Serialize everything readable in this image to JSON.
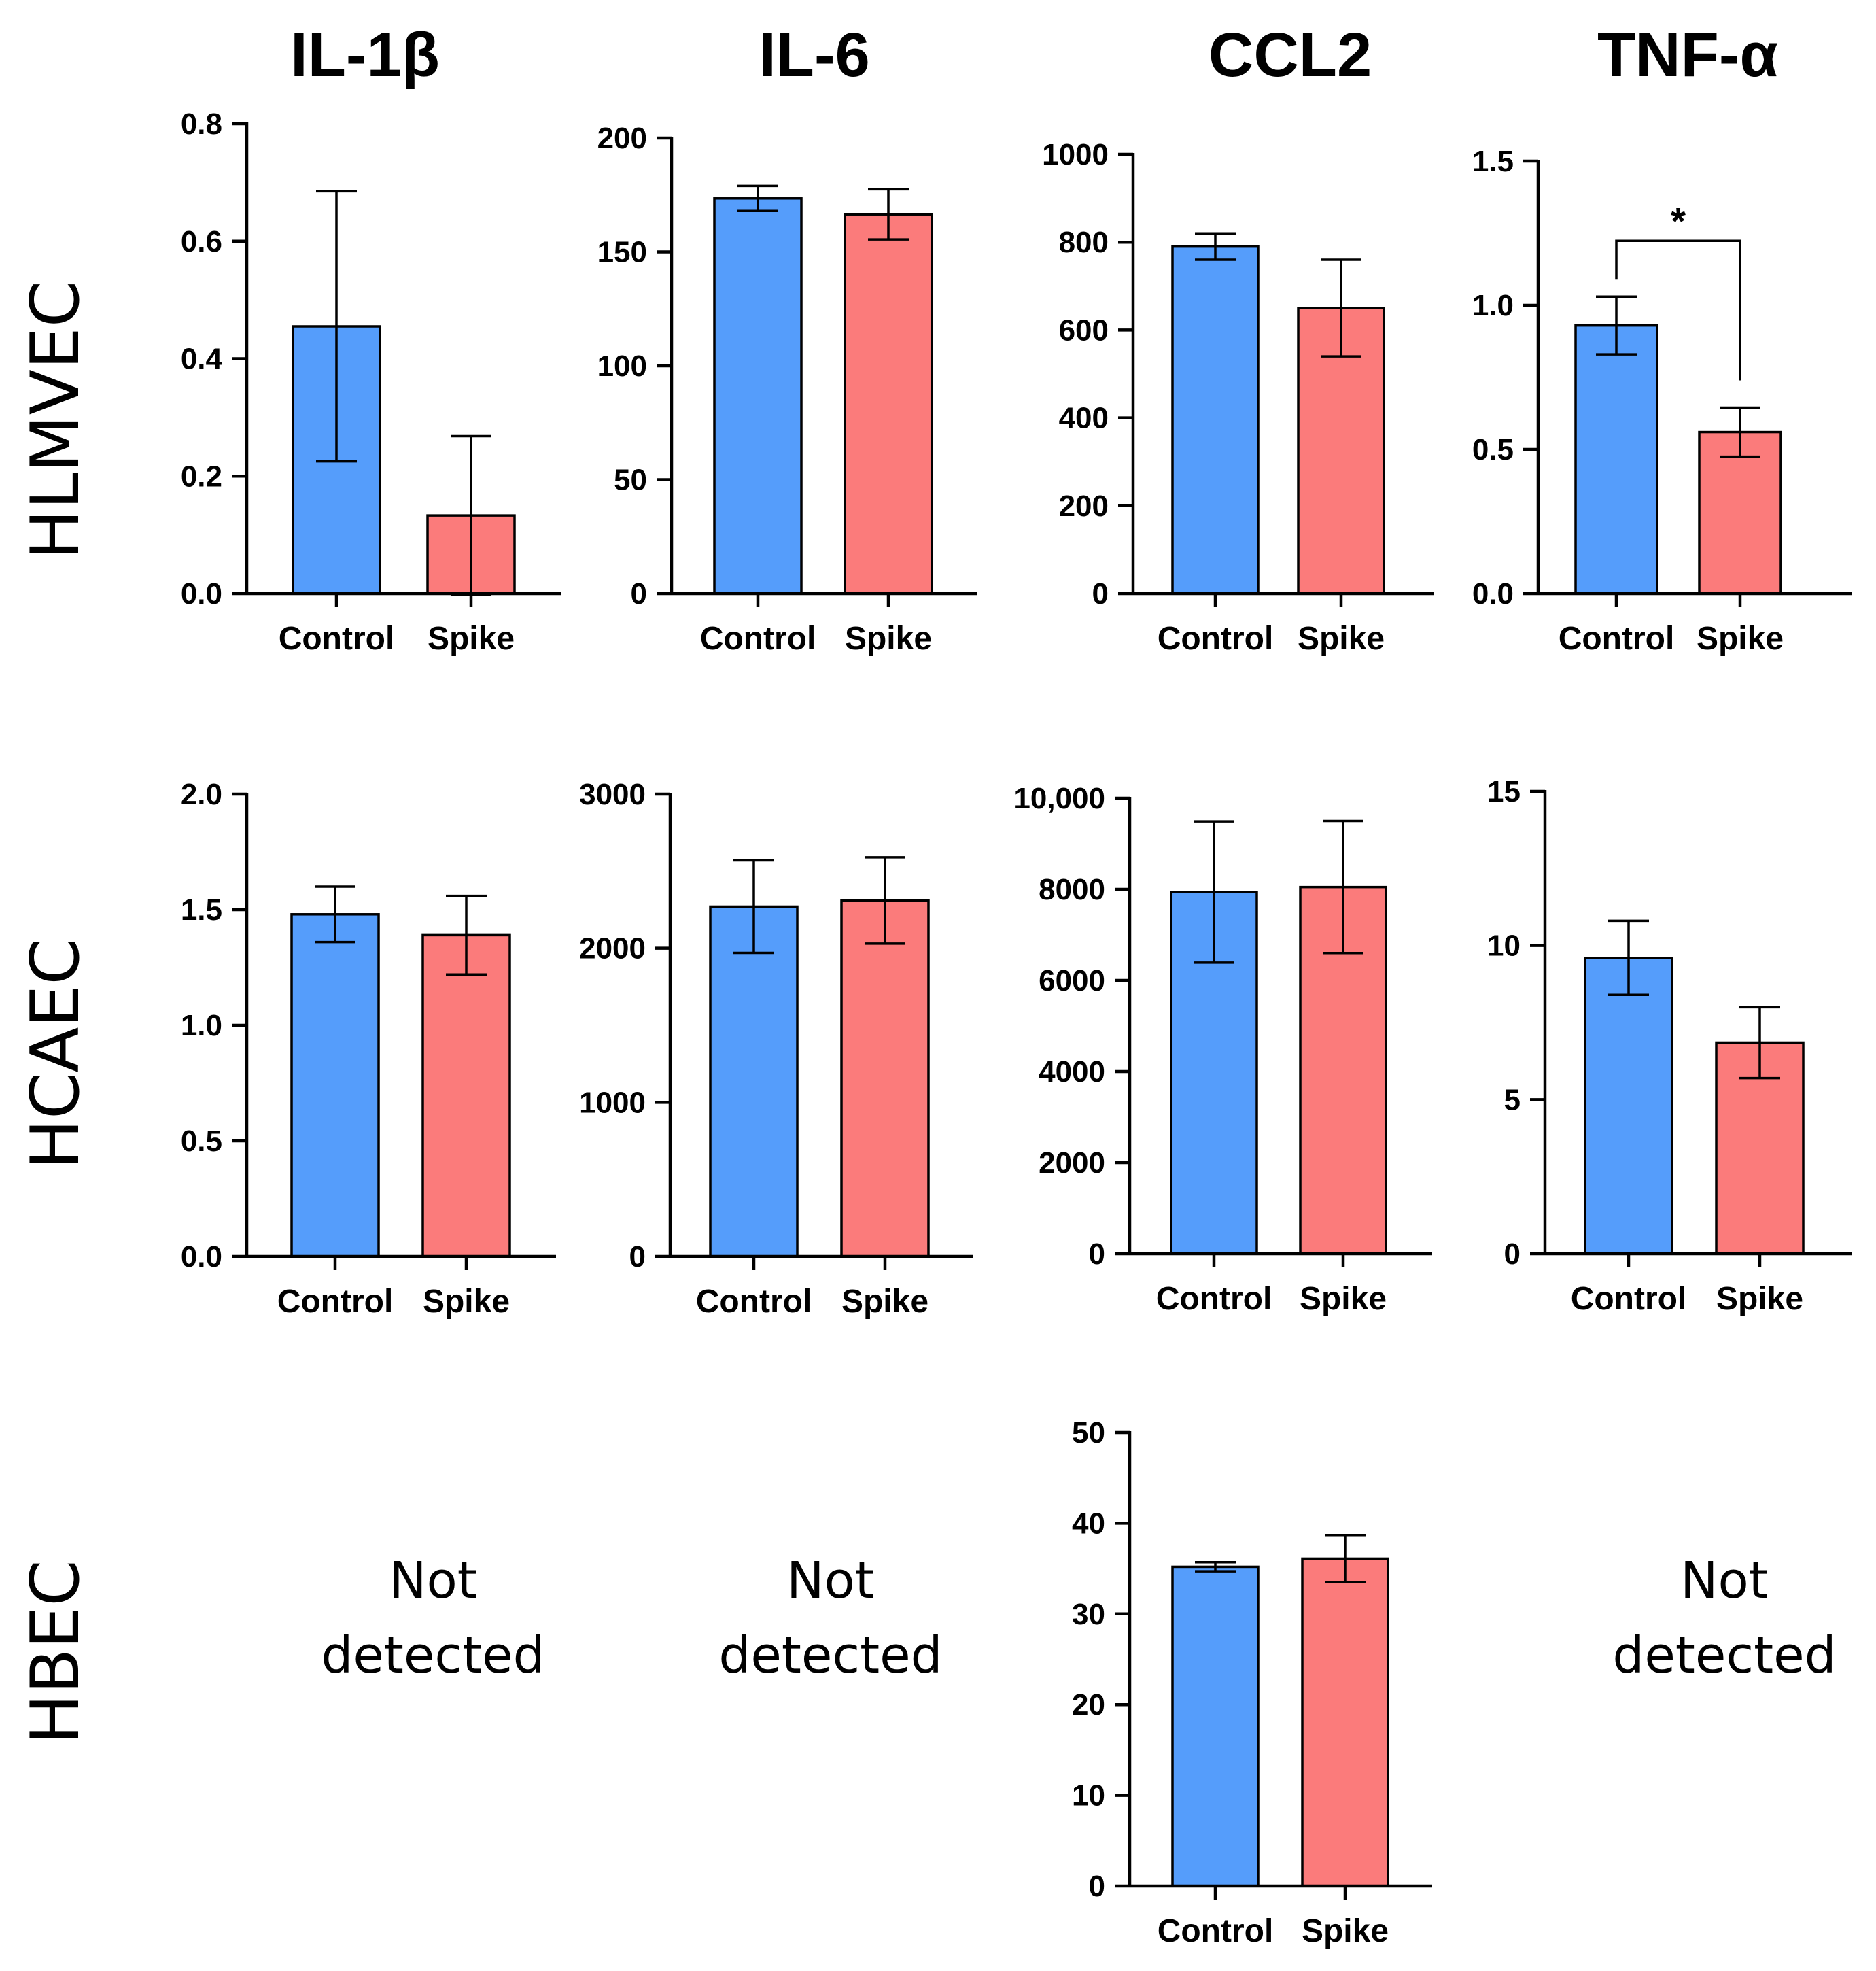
{
  "colors": {
    "control": "#559dfb",
    "spike": "#fb7b7b"
  },
  "columns": [
    "IL-1β",
    "IL-6",
    "CCL2",
    "TNF-α"
  ],
  "rows": [
    "HLMVEC",
    "HCAEC",
    "HBEC"
  ],
  "not_detected": [
    "Not",
    "detected"
  ],
  "chart_data": [
    {
      "type": "bar",
      "row": "HLMVEC",
      "column": "IL-1β",
      "categories": [
        "Control",
        "Spike"
      ],
      "values": [
        0.455,
        0.133
      ],
      "errors": [
        0.23,
        0.135
      ],
      "ylim": [
        0,
        0.8
      ],
      "ticks": [
        "0.0",
        "0.2",
        "0.4",
        "0.6",
        "0.8"
      ]
    },
    {
      "type": "bar",
      "row": "HLMVEC",
      "column": "IL-6",
      "categories": [
        "Control",
        "Spike"
      ],
      "values": [
        173.5,
        166.5
      ],
      "errors": [
        5.5,
        11
      ],
      "ylim": [
        0,
        200
      ],
      "ticks": [
        "0",
        "50",
        "100",
        "150",
        "200"
      ]
    },
    {
      "type": "bar",
      "row": "HLMVEC",
      "column": "CCL2",
      "categories": [
        "Control",
        "Spike"
      ],
      "values": [
        790,
        650
      ],
      "errors": [
        30,
        110
      ],
      "ylim": [
        0,
        1000
      ],
      "ticks": [
        "0",
        "200",
        "400",
        "600",
        "800",
        "1000"
      ]
    },
    {
      "type": "bar",
      "row": "HLMVEC",
      "column": "TNF-α",
      "categories": [
        "Control",
        "Spike"
      ],
      "values": [
        0.93,
        0.56
      ],
      "errors": [
        0.1,
        0.085
      ],
      "ylim": [
        0,
        1.5
      ],
      "ticks": [
        "0.0",
        "0.5",
        "1.0",
        "1.5"
      ],
      "annotation": "*"
    },
    {
      "type": "bar",
      "row": "HCAEC",
      "column": "IL-1β",
      "categories": [
        "Control",
        "Spike"
      ],
      "values": [
        1.48,
        1.39
      ],
      "errors": [
        0.12,
        0.17
      ],
      "ylim": [
        0,
        2
      ],
      "ticks": [
        "0.0",
        "0.5",
        "1.0",
        "1.5",
        "2.0"
      ]
    },
    {
      "type": "bar",
      "row": "HCAEC",
      "column": "IL-6",
      "categories": [
        "Control",
        "Spike"
      ],
      "values": [
        2270,
        2310
      ],
      "errors": [
        300,
        280
      ],
      "ylim": [
        0,
        3000
      ],
      "ticks": [
        "0",
        "1000",
        "2000",
        "3000"
      ]
    },
    {
      "type": "bar",
      "row": "HCAEC",
      "column": "CCL2",
      "categories": [
        "Control",
        "Spike"
      ],
      "values": [
        7940,
        8050
      ],
      "errors": [
        1550,
        1450
      ],
      "ylim": [
        0,
        10000
      ],
      "ticks": [
        "0",
        "2000",
        "4000",
        "6000",
        "8000",
        "10,000"
      ]
    },
    {
      "type": "bar",
      "row": "HCAEC",
      "column": "TNF-α",
      "categories": [
        "Control",
        "Spike"
      ],
      "values": [
        9.6,
        6.85
      ],
      "errors": [
        1.2,
        1.15
      ],
      "ylim": [
        0,
        15
      ],
      "ticks": [
        "0",
        "5",
        "10",
        "15"
      ]
    },
    {
      "type": "bar",
      "row": "HBEC",
      "column": "CCL2",
      "categories": [
        "Control",
        "Spike"
      ],
      "values": [
        35.2,
        36.1
      ],
      "errors": [
        0.5,
        2.6
      ],
      "ylim": [
        0,
        50
      ],
      "ticks": [
        "0",
        "10",
        "20",
        "30",
        "40",
        "50"
      ]
    }
  ]
}
